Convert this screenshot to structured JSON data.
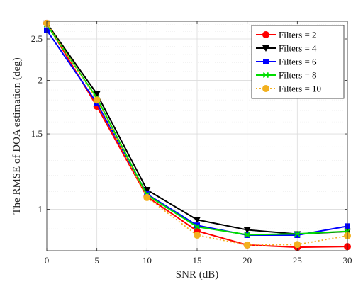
{
  "chart_data": {
    "type": "line",
    "title": "",
    "xlabel": "SNR (dB)",
    "ylabel": "The RMSE of DOA estimation (deg)",
    "xlim": [
      0,
      30
    ],
    "ylim": [
      0.8,
      2.75
    ],
    "y_scale": "log",
    "grid": true,
    "legend_position": "top-right",
    "x_ticks": [
      0,
      5,
      10,
      15,
      20,
      25,
      30
    ],
    "x_tick_labels": [
      "0",
      "5",
      "10",
      "15",
      "20",
      "25",
      "30"
    ],
    "y_ticks": [
      1,
      1.5,
      2,
      2.5
    ],
    "y_tick_labels": [
      "1",
      "1.5",
      "2",
      "2.5"
    ],
    "x": [
      0,
      5,
      10,
      15,
      20,
      25,
      30
    ],
    "series": [
      {
        "name": "Filters = 2",
        "color": "#ff0000",
        "marker": "circle",
        "line": "solid",
        "values": [
          2.72,
          1.74,
          1.07,
          0.89,
          0.825,
          0.815,
          0.818
        ]
      },
      {
        "name": "Filters = 4",
        "color": "#000000",
        "marker": "triangle-down",
        "line": "solid",
        "values": [
          2.72,
          1.86,
          1.11,
          0.945,
          0.895,
          0.875,
          0.887
        ]
      },
      {
        "name": "Filters = 6",
        "color": "#0000ff",
        "marker": "square",
        "line": "solid",
        "values": [
          2.62,
          1.77,
          1.085,
          0.917,
          0.87,
          0.87,
          0.913
        ]
      },
      {
        "name": "Filters = 8",
        "color": "#00dd00",
        "marker": "x",
        "line": "solid",
        "values": [
          2.7,
          1.82,
          1.08,
          0.91,
          0.872,
          0.876,
          0.888
        ]
      },
      {
        "name": "Filters = 10",
        "color": "#f2b01e",
        "marker": "circle",
        "line": "dotted",
        "values": [
          2.72,
          1.8,
          1.065,
          0.87,
          0.825,
          0.827,
          0.867
        ]
      }
    ]
  }
}
